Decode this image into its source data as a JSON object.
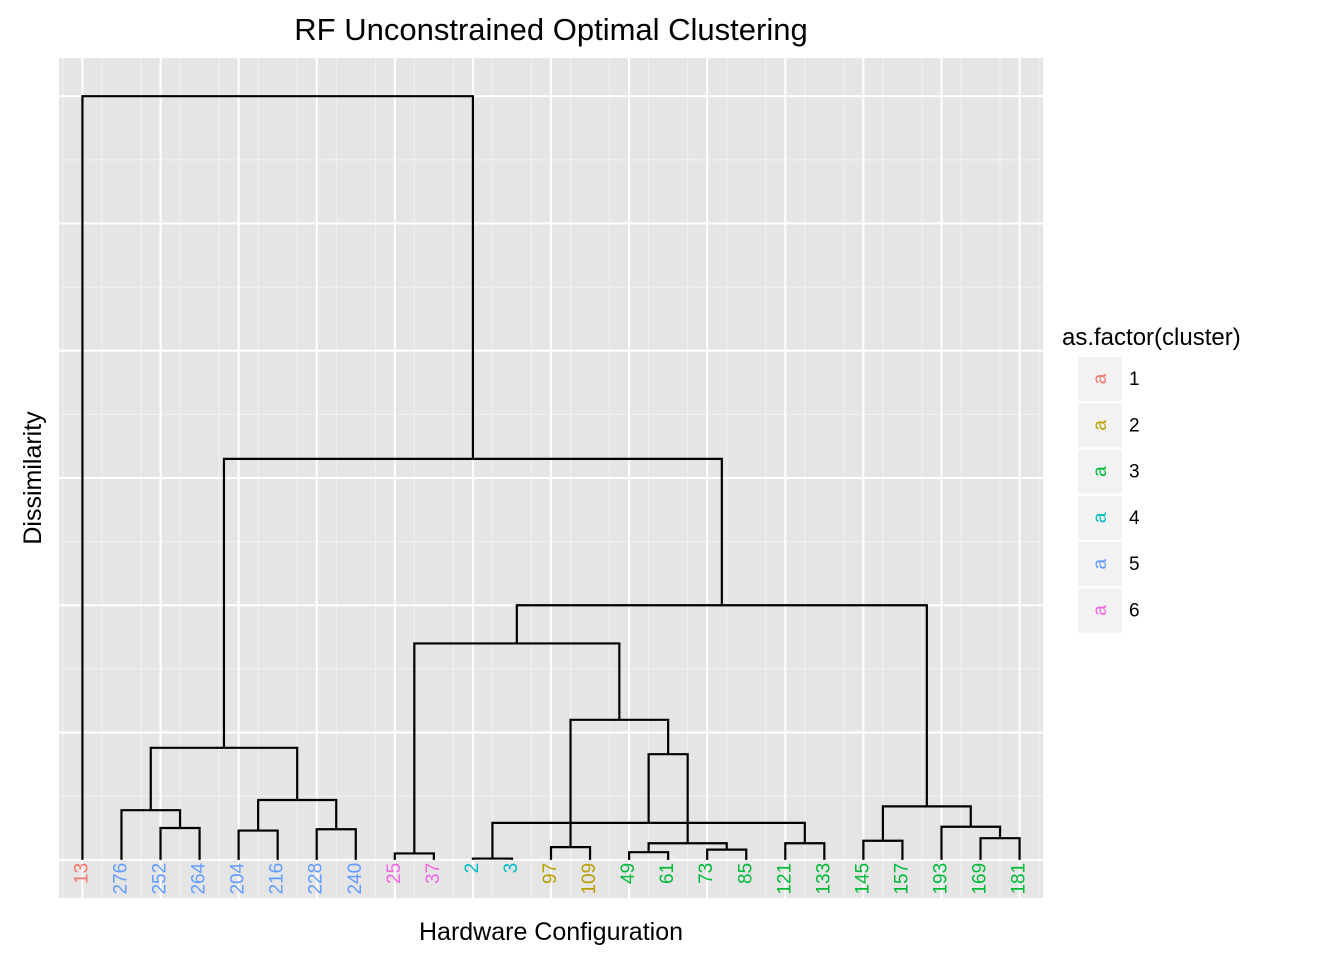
{
  "chart_data": {
    "type": "dendrogram",
    "title": "RF Unconstrained Optimal Clustering",
    "xlabel": "Hardware Configuration",
    "ylabel": "Dissimilarity",
    "ylim": [
      -0.3,
      6.3
    ],
    "grid": true,
    "legend_position": "right",
    "legend": {
      "title": "as.factor(cluster)",
      "key_glyph": "a",
      "entries": [
        {
          "label": "1",
          "color": "#F8766D"
        },
        {
          "label": "2",
          "color": "#B79F00"
        },
        {
          "label": "3",
          "color": "#00BA38"
        },
        {
          "label": "4",
          "color": "#00BFC4"
        },
        {
          "label": "5",
          "color": "#619CFF"
        },
        {
          "label": "6",
          "color": "#F564E3"
        }
      ]
    },
    "leaves": [
      {
        "label": "13",
        "cluster": 1
      },
      {
        "label": "276",
        "cluster": 5
      },
      {
        "label": "252",
        "cluster": 5
      },
      {
        "label": "264",
        "cluster": 5
      },
      {
        "label": "204",
        "cluster": 5
      },
      {
        "label": "216",
        "cluster": 5
      },
      {
        "label": "228",
        "cluster": 5
      },
      {
        "label": "240",
        "cluster": 5
      },
      {
        "label": "25",
        "cluster": 6
      },
      {
        "label": "37",
        "cluster": 6
      },
      {
        "label": "2",
        "cluster": 4
      },
      {
        "label": "3",
        "cluster": 4
      },
      {
        "label": "97",
        "cluster": 2
      },
      {
        "label": "109",
        "cluster": 2
      },
      {
        "label": "49",
        "cluster": 3
      },
      {
        "label": "61",
        "cluster": 3
      },
      {
        "label": "73",
        "cluster": 3
      },
      {
        "label": "85",
        "cluster": 3
      },
      {
        "label": "121",
        "cluster": 3
      },
      {
        "label": "133",
        "cluster": 3
      },
      {
        "label": "145",
        "cluster": 3
      },
      {
        "label": "157",
        "cluster": 3
      },
      {
        "label": "193",
        "cluster": 3
      },
      {
        "label": "169",
        "cluster": 3
      },
      {
        "label": "181",
        "cluster": 3
      }
    ],
    "merges": [
      {
        "left": "L2",
        "right": "L3",
        "height": 0.25
      },
      {
        "left": "L16",
        "right": "L17",
        "height": 0.08
      },
      {
        "left": "L23",
        "right": "L24",
        "height": 0.17
      },
      {
        "left": "L6",
        "right": "L7",
        "height": 0.24
      },
      {
        "left": "L20",
        "right": "L21",
        "height": 0.15
      },
      {
        "left": "L18",
        "right": "L19",
        "height": 0.13
      },
      {
        "left": "L12",
        "right": "L13",
        "height": 0.1
      },
      {
        "left": "L4",
        "right": "L5",
        "height": 0.23
      },
      {
        "left": "L8",
        "right": "L9",
        "height": 0.05
      },
      {
        "left": "L14",
        "right": "L15",
        "height": 0.06
      },
      {
        "left": "L10",
        "right": "L11",
        "height": 0.01
      },
      {
        "left": "L22",
        "right": "M2",
        "height": 0.26
      },
      {
        "left": "M9",
        "right": "M1",
        "height": 0.13
      },
      {
        "left": "L1",
        "right": "M0",
        "height": 0.39
      },
      {
        "left": "M3",
        "right": "M7",
        "height": 0.47
      },
      {
        "left": "M10",
        "right": "M5",
        "height": 0.29
      },
      {
        "left": "M11",
        "right": "M4",
        "height": 0.42
      },
      {
        "left": "M12",
        "right": "M15",
        "height": 0.83
      },
      {
        "left": "M13",
        "right": "M14",
        "height": 0.88
      },
      {
        "left": "M6",
        "right": "M17",
        "height": 1.1
      },
      {
        "left": "M8",
        "right": "M19",
        "height": 1.7
      },
      {
        "left": "M20",
        "right": "M16",
        "height": 2.0
      },
      {
        "left": "M18",
        "right": "M21",
        "height": 3.15
      },
      {
        "left": "L0",
        "right": "M22",
        "height": 6.0
      }
    ]
  }
}
